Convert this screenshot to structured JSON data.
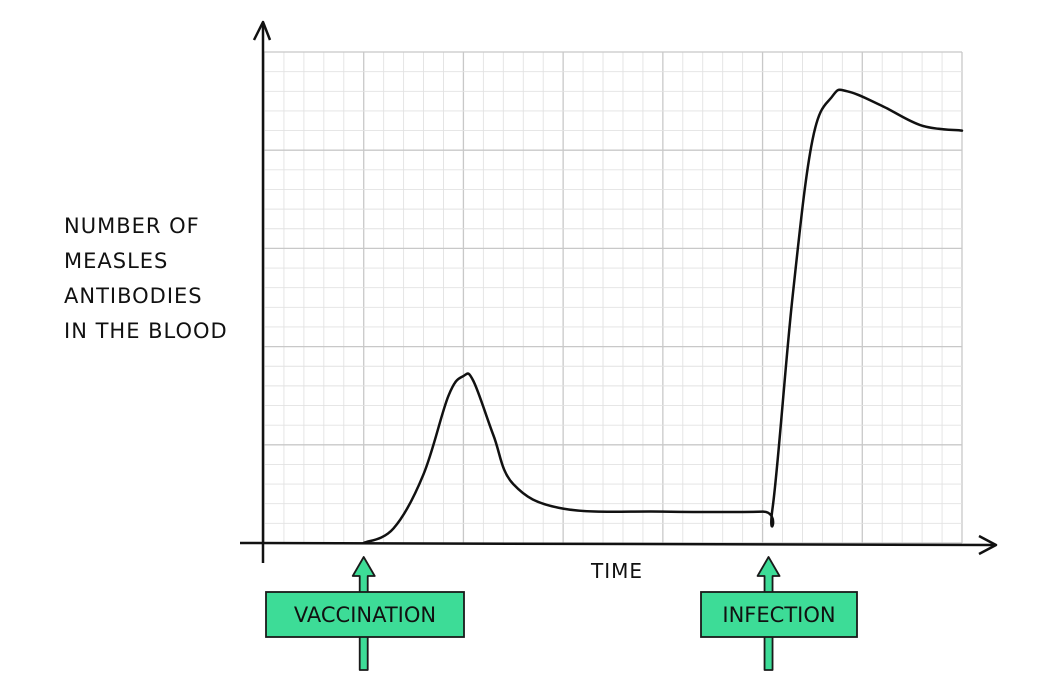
{
  "chart_data": {
    "type": "line",
    "title": "",
    "ylabel_lines": [
      "NUMBER  OF",
      "MEASLES",
      "ANTIBODIES",
      "IN  THE BLOOD"
    ],
    "xlabel": "TIME",
    "xlim": [
      0,
      7
    ],
    "ylim": [
      0,
      5
    ],
    "grid": true,
    "series": [
      {
        "values_x": [
          1.0,
          1.3,
          1.6,
          1.85,
          2.0,
          2.1,
          2.3,
          2.5,
          3.0,
          4.0,
          5.0,
          5.1,
          5.3,
          5.5,
          5.7,
          5.85,
          6.2,
          6.6,
          7.0
        ],
        "values_y": [
          0.0,
          0.15,
          0.7,
          1.5,
          1.7,
          1.65,
          1.1,
          0.6,
          0.35,
          0.32,
          0.32,
          0.35,
          2.5,
          4.1,
          4.55,
          4.6,
          4.45,
          4.25,
          4.2
        ]
      }
    ],
    "annotations": [
      {
        "text": "VACCINATION",
        "x": 1.0
      },
      {
        "text": "INFECTION",
        "x": 5.1
      }
    ]
  },
  "colors": {
    "axis": "#111111",
    "curve": "#111111",
    "grid_major": "#c8c8c8",
    "grid_minor": "#e2e2e2",
    "label_fill": "#3ddc97",
    "label_stroke": "#1a1a1a"
  }
}
